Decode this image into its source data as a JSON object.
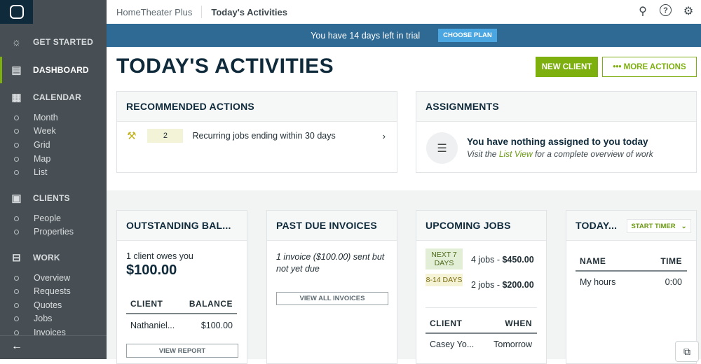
{
  "sidebar": {
    "logo": "JOBBER",
    "items": [
      {
        "label": "GET STARTED",
        "icon": "lightbulb-icon"
      },
      {
        "label": "DASHBOARD",
        "icon": "dashboard-icon"
      },
      {
        "label": "CALENDAR",
        "icon": "calendar-icon"
      },
      {
        "label": "CLIENTS",
        "icon": "contacts-icon"
      },
      {
        "label": "WORK",
        "icon": "briefcase-icon"
      }
    ],
    "calendar_sub": [
      "Month",
      "Week",
      "Grid",
      "Map",
      "List"
    ],
    "clients_sub": [
      "People",
      "Properties"
    ],
    "work_sub": [
      "Overview",
      "Requests",
      "Quotes",
      "Jobs",
      "Invoices"
    ],
    "back": "←"
  },
  "topbar": {
    "app": "HomeTheater Plus",
    "page": "Today's Activities"
  },
  "banner": {
    "text": "You have 14 days left in trial",
    "button": "CHOOSE PLAN"
  },
  "page": {
    "title": "TODAY'S ACTIVITIES",
    "new_client": "NEW CLIENT",
    "more_actions": "••• MORE ACTIONS"
  },
  "recommended": {
    "title": "RECOMMENDED ACTIONS",
    "count": "2",
    "text": "Recurring jobs ending within 30 days"
  },
  "assignments": {
    "title": "ASSIGNMENTS",
    "heading": "You have nothing assigned to you today",
    "pre": "Visit the ",
    "link": "List View",
    "post": " for a complete overview of work"
  },
  "outstanding": {
    "title": "OUTSTANDING BAL...",
    "sub": "1 client owes you",
    "amount": "$100.00",
    "col1": "CLIENT",
    "col2": "BALANCE",
    "row_client": "Nathaniel...",
    "row_balance": "$100.00",
    "button": "VIEW REPORT"
  },
  "pastdue": {
    "title": "PAST DUE INVOICES",
    "text": "1 invoice ($100.00) sent but not yet due",
    "button": "VIEW ALL INVOICES"
  },
  "upcoming": {
    "title": "UPCOMING JOBS",
    "p1": "NEXT 7 DAYS",
    "p1_jobs": "4 jobs - ",
    "p1_amt": "$450.00",
    "p2": "8-14 DAYS",
    "p2_jobs": "2 jobs - ",
    "p2_amt": "$200.00",
    "col1": "CLIENT",
    "col2": "WHEN",
    "row_client": "Casey Yo...",
    "row_when": "Tomorrow"
  },
  "timer": {
    "title": "TODAY...",
    "button": "START TIMER",
    "col1": "NAME",
    "col2": "TIME",
    "row_name": "My hours",
    "row_time": "0:00"
  }
}
